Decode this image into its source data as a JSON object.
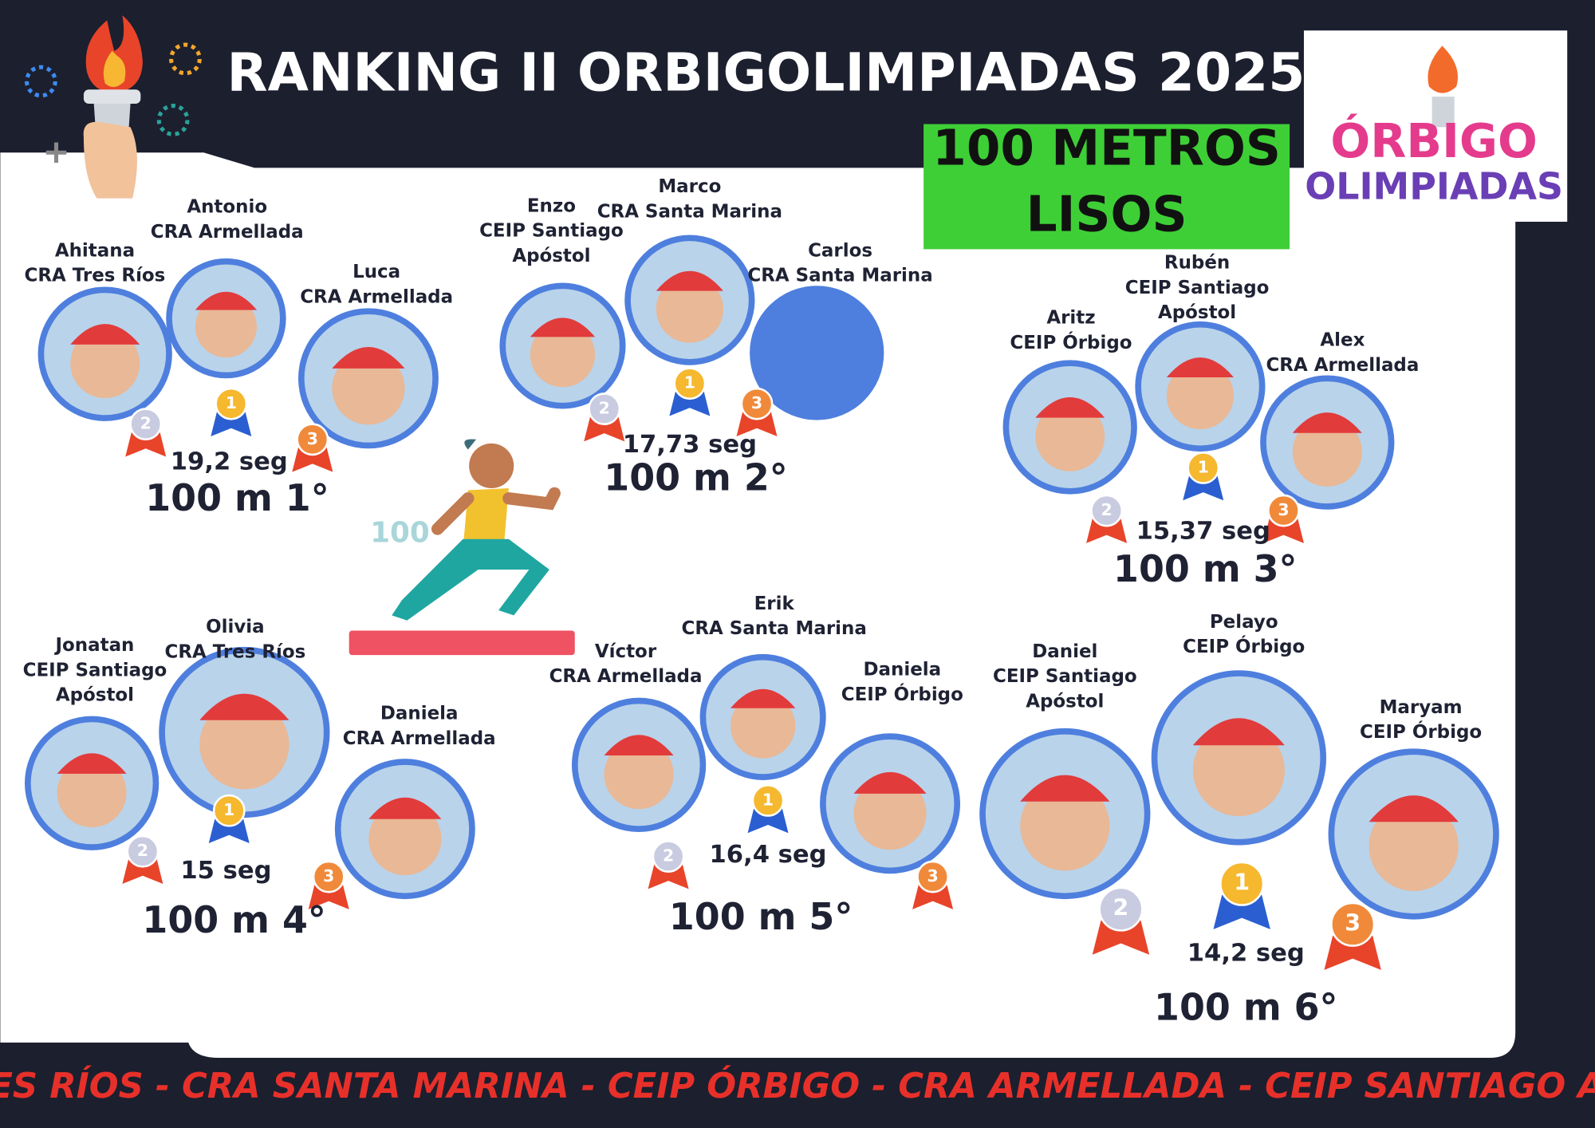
{
  "header": {
    "title": "RANKING II ORBIGOLIMPIADAS 2025",
    "event": [
      "100 METROS",
      "LISOS"
    ]
  },
  "logo": [
    "ÓRBIGO",
    "OLIMPIADAS"
  ],
  "runner_label": "100",
  "groups": [
    {
      "time": "19,2 seg",
      "race": "100 m 1°",
      "athletes": [
        {
          "name": "Ahitana",
          "school": [
            "CRA Tres Ríos"
          ],
          "place": "2"
        },
        {
          "name": "Antonio",
          "school": [
            "CRA Armellada"
          ],
          "place": "1"
        },
        {
          "name": "Luca",
          "school": [
            "CRA Armellada"
          ],
          "place": "3"
        }
      ]
    },
    {
      "time": "17,73 seg",
      "race": "100 m 2°",
      "athletes": [
        {
          "name": "Enzo",
          "school": [
            "CEIP Santiago",
            "Apóstol"
          ],
          "place": "2"
        },
        {
          "name": "Marco",
          "school": [
            "CRA Santa Marina"
          ],
          "place": "1"
        },
        {
          "name": "Carlos",
          "school": [
            "CRA Santa Marina"
          ],
          "place": "3"
        }
      ]
    },
    {
      "time": "15,37 seg",
      "race": "100 m 3°",
      "athletes": [
        {
          "name": "Aritz",
          "school": [
            "CEIP Órbigo"
          ],
          "place": "2"
        },
        {
          "name": "Rubén",
          "school": [
            "CEIP Santiago",
            "Apóstol"
          ],
          "place": "1"
        },
        {
          "name": "Alex",
          "school": [
            "CRA Armellada"
          ],
          "place": "3"
        }
      ]
    },
    {
      "time": "15 seg",
      "race": "100 m 4°",
      "athletes": [
        {
          "name": "Jonatan",
          "school": [
            "CEIP Santiago",
            "Apóstol"
          ],
          "place": "2"
        },
        {
          "name": "Olivia",
          "school": [
            "CRA Tres Ríos"
          ],
          "place": "1"
        },
        {
          "name": "Daniela",
          "school": [
            "CRA Armellada"
          ],
          "place": "3"
        }
      ]
    },
    {
      "time": "16,4 seg",
      "race": "100 m 5°",
      "athletes": [
        {
          "name": "Víctor",
          "school": [
            "CRA Armellada"
          ],
          "place": "2"
        },
        {
          "name": "Erik",
          "school": [
            "CRA Santa Marina"
          ],
          "place": "1"
        },
        {
          "name": "Daniela",
          "school": [
            "CEIP Órbigo"
          ],
          "place": "3"
        }
      ]
    },
    {
      "time": "14,2 seg",
      "race": "100 m 6°",
      "athletes": [
        {
          "name": "Daniel",
          "school": [
            "CEIP Santiago",
            "Apóstol"
          ],
          "place": "2"
        },
        {
          "name": "Pelayo",
          "school": [
            "CEIP Órbigo"
          ],
          "place": "1"
        },
        {
          "name": "Maryam",
          "school": [
            "CEIP Órbigo"
          ],
          "place": "3"
        }
      ]
    }
  ],
  "footer": "CRA TRES RÍOS - CRA SANTA MARINA - CEIP ÓRBIGO - CRA ARMELLADA - CEIP SANTIAGO APÓSTOL"
}
